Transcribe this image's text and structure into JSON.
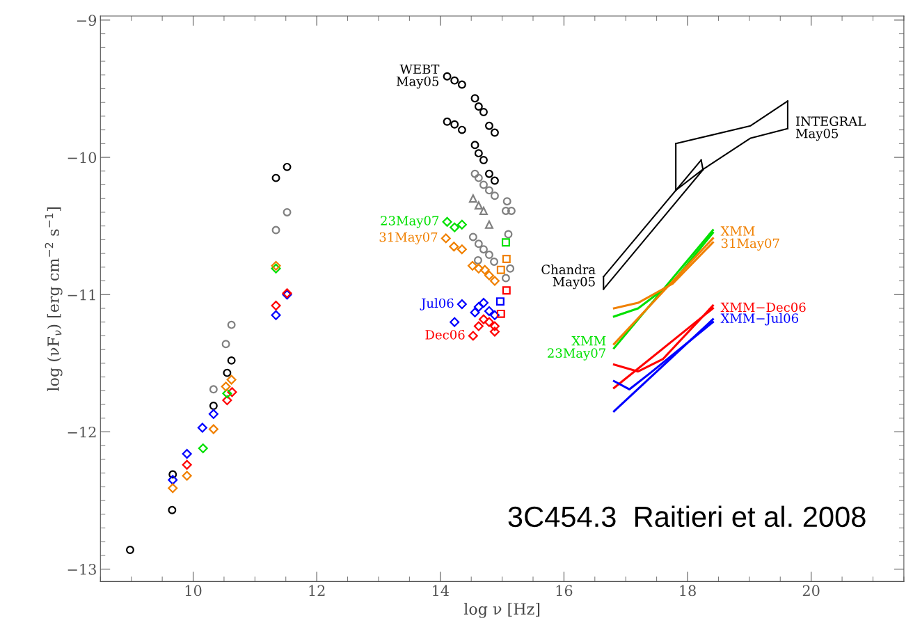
{
  "chart_data": {
    "type": "scatter",
    "xlabel": "log ν [Hz]",
    "ylabel": "log (νF$_{ν}$) [erg cm$^{−2}$ s$^{−1}$]",
    "xlim": [
      8.5,
      21.5
    ],
    "ylim": [
      -13.09,
      -8.97
    ],
    "xticks": [
      10,
      12,
      14,
      16,
      18,
      20
    ],
    "yticks": [
      -13,
      -12,
      -11,
      -10,
      -9
    ],
    "grid": false,
    "legend": false,
    "annotations": [
      "3C454.3  Raitieri et al. 2008"
    ],
    "series": [
      {
        "color": "#000000",
        "marker": "circle",
        "x": [
          8.98,
          9.66,
          9.67,
          10.33,
          10.55,
          10.62,
          11.34,
          11.52
        ],
        "values": [
          -12.86,
          -12.57,
          -12.31,
          -11.81,
          -11.57,
          -11.48,
          -10.15,
          -10.07
        ]
      },
      {
        "color": "#808080",
        "marker": "circle",
        "x": [
          10.33,
          10.53,
          10.62,
          11.34,
          11.52,
          14.56,
          14.62,
          14.7,
          14.79,
          14.88,
          15.08,
          15.06,
          15.15,
          14.53,
          14.62,
          14.7,
          14.79,
          14.87,
          15.1,
          15.13,
          15.06,
          14.61
        ],
        "values": [
          -11.69,
          -11.36,
          -11.22,
          -10.53,
          -10.4,
          -10.12,
          -10.15,
          -10.2,
          -10.24,
          -10.28,
          -10.32,
          -10.39,
          -10.39,
          -10.58,
          -10.63,
          -10.67,
          -10.71,
          -10.76,
          -10.56,
          -10.81,
          -10.88,
          -10.75
        ]
      },
      {
        "color": "#808080",
        "marker": "triangle",
        "x": [
          14.53,
          14.62,
          14.7,
          14.79
        ],
        "values": [
          -10.3,
          -10.35,
          -10.39,
          -10.49
        ]
      },
      {
        "name": "WEBT\nMay05",
        "color": "#000000",
        "marker": "circle",
        "x": [
          14.11,
          14.23,
          14.35,
          14.56,
          14.62,
          14.7,
          14.79,
          14.88,
          14.11,
          14.23,
          14.35,
          14.56,
          14.62,
          14.7,
          14.79,
          14.88
        ],
        "values": [
          -9.41,
          -9.44,
          -9.47,
          -9.57,
          -9.63,
          -9.67,
          -9.77,
          -9.82,
          -9.74,
          -9.76,
          -9.8,
          -9.91,
          -9.97,
          -10.02,
          -10.12,
          -10.17
        ]
      },
      {
        "color": "#0000ff",
        "marker": "diamond",
        "x": [
          9.67,
          9.9,
          10.15,
          10.33,
          11.34,
          11.52
        ],
        "values": [
          -12.35,
          -12.16,
          -11.97,
          -11.87,
          -11.15,
          -11.0
        ]
      },
      {
        "color": "#ff0000",
        "marker": "diamond",
        "x": [
          9.9,
          10.55,
          10.63,
          11.34,
          11.52
        ],
        "values": [
          -12.24,
          -11.77,
          -11.71,
          -11.08,
          -10.99
        ]
      },
      {
        "color": "#00e000",
        "marker": "diamond",
        "x": [
          10.16,
          10.55,
          11.34
        ],
        "values": [
          -12.12,
          -11.72,
          -10.81
        ]
      },
      {
        "color": "#f08000",
        "marker": "diamond",
        "x": [
          9.67,
          9.9,
          10.33,
          10.53,
          10.62,
          11.34
        ],
        "values": [
          -12.41,
          -12.32,
          -11.98,
          -11.67,
          -11.62,
          -10.79
        ]
      },
      {
        "name": "23May07",
        "color": "#00e000",
        "marker": "diamond",
        "x": [
          14.11,
          14.23,
          14.35
        ],
        "values": [
          -10.47,
          -10.51,
          -10.49
        ]
      },
      {
        "color": "#00e000",
        "marker": "square",
        "x": [
          15.06
        ],
        "values": [
          -10.62
        ]
      },
      {
        "name": "31May07",
        "color": "#f08000",
        "marker": "diamond",
        "x": [
          14.09,
          14.22,
          14.35,
          14.52,
          14.62,
          14.72,
          14.79,
          14.88
        ],
        "values": [
          -10.59,
          -10.65,
          -10.67,
          -10.79,
          -10.81,
          -10.82,
          -10.86,
          -10.9
        ]
      },
      {
        "color": "#f08000",
        "marker": "square",
        "x": [
          15.07,
          14.98
        ],
        "values": [
          -10.74,
          -10.82
        ]
      },
      {
        "name": "Jul06",
        "color": "#0000ff",
        "marker": "diamond",
        "x": [
          14.35,
          14.23,
          14.56,
          14.62,
          14.7,
          14.79,
          14.88
        ],
        "values": [
          -11.07,
          -11.2,
          -11.13,
          -11.09,
          -11.06,
          -11.12,
          -11.15
        ]
      },
      {
        "color": "#0000ff",
        "marker": "square",
        "x": [
          14.97
        ],
        "values": [
          -11.05
        ]
      },
      {
        "name": "Dec06",
        "color": "#ff0000",
        "marker": "diamond",
        "x": [
          14.53,
          14.62,
          14.7,
          14.79,
          14.88,
          14.88
        ],
        "values": [
          -11.3,
          -11.23,
          -11.18,
          -11.2,
          -11.23,
          -11.27
        ]
      },
      {
        "color": "#ff0000",
        "marker": "square",
        "x": [
          15.07,
          14.98
        ],
        "values": [
          -10.97,
          -11.14
        ]
      },
      {
        "name": "Chandra\nMay05",
        "type": "line",
        "color": "#000000",
        "marker": "none",
        "x": [
          16.64,
          18.22
        ],
        "values": [
          -10.87,
          -10.02
        ]
      },
      {
        "type": "line",
        "color": "#000000",
        "marker": "none",
        "x": [
          16.64,
          18.25
        ],
        "values": [
          -10.96,
          -10.09
        ]
      },
      {
        "type": "line",
        "color": "#000000",
        "marker": "none",
        "x": [
          18.22,
          18.25
        ],
        "values": [
          -10.02,
          -10.09
        ]
      },
      {
        "type": "line",
        "color": "#000000",
        "marker": "none",
        "x": [
          16.64,
          16.64
        ],
        "values": [
          -10.96,
          -10.87
        ]
      },
      {
        "name": "INTEGRAL\nMay05",
        "type": "line",
        "color": "#000000",
        "marker": "none",
        "x": [
          19.62,
          19.02,
          18.24,
          17.81
        ],
        "values": [
          -9.79,
          -9.86,
          -10.09,
          -10.24
        ]
      },
      {
        "type": "line",
        "color": "#000000",
        "marker": "none",
        "x": [
          17.81,
          19.02,
          19.62
        ],
        "values": [
          -9.9,
          -9.77,
          -9.59
        ]
      },
      {
        "type": "line",
        "color": "#000000",
        "marker": "none",
        "x": [
          19.62,
          19.62
        ],
        "values": [
          -9.59,
          -9.79
        ]
      },
      {
        "type": "line",
        "color": "#000000",
        "marker": "none",
        "x": [
          17.81,
          17.81
        ],
        "values": [
          -9.9,
          -10.24
        ]
      },
      {
        "name": "XMM\n23May07",
        "type": "line",
        "color": "#00e000",
        "marker": "none",
        "x": [
          16.81,
          18.41
        ],
        "values": [
          -11.39,
          -10.53
        ]
      },
      {
        "type": "line",
        "color": "#00e000",
        "marker": "none",
        "x": [
          16.81,
          17.2,
          17.76,
          18.41
        ],
        "values": [
          -11.16,
          -11.1,
          -10.91,
          -10.55
        ]
      },
      {
        "name": "XMM\n31May07",
        "type": "line",
        "color": "#f08000",
        "marker": "none",
        "x": [
          18.41,
          16.81
        ],
        "values": [
          -10.59,
          -11.36
        ]
      },
      {
        "type": "line",
        "color": "#f08000",
        "marker": "none",
        "x": [
          16.81,
          17.2,
          17.76,
          18.41
        ],
        "values": [
          -11.1,
          -11.06,
          -10.92,
          -10.62
        ]
      },
      {
        "name": "XMM−Dec06",
        "type": "line",
        "color": "#ff0000",
        "marker": "none",
        "x": [
          18.41,
          16.81
        ],
        "values": [
          -11.1,
          -11.68
        ]
      },
      {
        "type": "line",
        "color": "#ff0000",
        "marker": "none",
        "x": [
          16.81,
          17.2,
          17.6,
          18.41
        ],
        "values": [
          -11.51,
          -11.56,
          -11.47,
          -11.08
        ]
      },
      {
        "name": "XMM−Jul06",
        "type": "line",
        "color": "#0000ff",
        "marker": "none",
        "x": [
          18.41,
          16.81
        ],
        "values": [
          -11.18,
          -11.85
        ]
      },
      {
        "type": "line",
        "color": "#0000ff",
        "marker": "none",
        "x": [
          16.81,
          17.06,
          17.4,
          18.41
        ],
        "values": [
          -11.63,
          -11.69,
          -11.57,
          -11.2
        ]
      }
    ]
  }
}
